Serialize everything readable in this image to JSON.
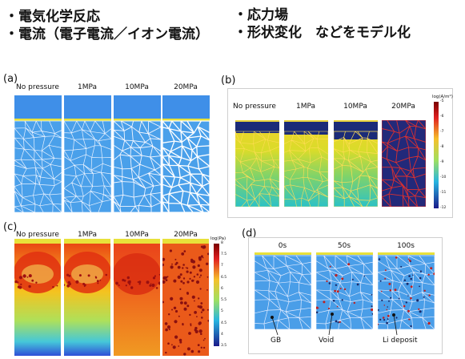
{
  "bullets_left": [
    "・電気化学反応",
    "・電流（電子電流／イオン電流）"
  ],
  "bullets_right": [
    "・応力場",
    "・形状変化　などをモデル化"
  ],
  "panel_a": {
    "label": "(a)",
    "columns": [
      "No pressure",
      "1MPa",
      "10MPa",
      "20MPa"
    ]
  },
  "panel_b": {
    "label": "(b)",
    "columns": [
      "No pressure",
      "1MPa",
      "10MPa",
      "20MPa"
    ],
    "colorbar_title": "log(A/m²)",
    "colorbar_ticks": [
      "-5",
      "-6",
      "-7",
      "-8",
      "-9",
      "-10",
      "-11",
      "-12"
    ]
  },
  "panel_c": {
    "label": "(c)",
    "columns": [
      "No pressure",
      "1MPa",
      "10MPa",
      "20MPa"
    ],
    "colorbar_title": "log(Pa)",
    "colorbar_ticks": [
      "8",
      "7.5",
      "7",
      "6.5",
      "6",
      "5.5",
      "5",
      "4.5",
      "4",
      "3.5"
    ]
  },
  "panel_d": {
    "label": "(d)",
    "columns": [
      "0s",
      "50s",
      "100s"
    ],
    "annotations": [
      "GB",
      "Void",
      "Li deposit"
    ]
  },
  "colors": {
    "electrolyte_blue": "#3f8fe8",
    "grain_blue": "#4aa0ea",
    "li_metal_yellow": "#e8e13a",
    "boundary_white": "#f2f6ff",
    "void_dark": "#1a2a6a",
    "deposit_red": "#c02020"
  }
}
